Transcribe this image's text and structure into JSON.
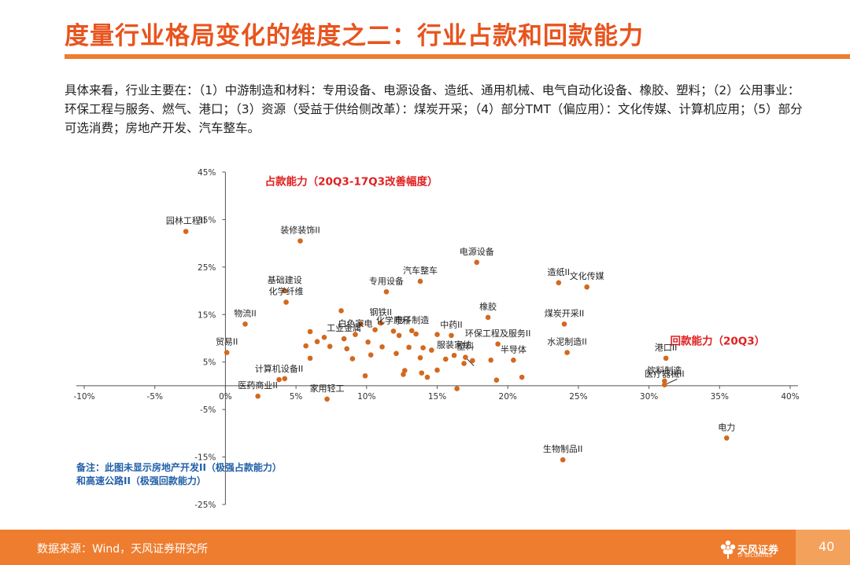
{
  "page": {
    "title": "度量行业格局变化的维度之二：行业占款和回款能力",
    "intro": "具体来看，行业主要在：（1）中游制造和材料：专用设备、电源设备、造纸、通用机械、电气自动化设备、橡胶、塑料；（2）公用事业：环保工程与服务、燃气、港口；（3）资源（受益于供给侧改革）：煤炭开采；（4）部分TMT（偏应用）：文化传媒、计算机应用；（5）部分可选消费；房地产开发、汽车整车。",
    "note_line1": "备注：此图未显示房地产开发II（极强占款能力）",
    "note_line2": "和高速公路II（极强回款能力）",
    "source": "数据来源：Wind，天风证券研究所",
    "page_number": "40",
    "logo_text": "天风证券",
    "logo_sub": "TF SECURITIES"
  },
  "colors": {
    "accent": "#ee7d2f",
    "title": "#e8541e",
    "point": "#d2691e",
    "axis_title": "#e02020",
    "note": "#1f5fa8"
  },
  "chart_data": {
    "type": "scatter",
    "xlabel": "回款能力（20Q3）",
    "ylabel": "占款能力（20Q3-17Q3改善幅度）",
    "xlim": [
      -10,
      40
    ],
    "ylim": [
      -25,
      45
    ],
    "x_ticks": [
      "-10%",
      "-5%",
      "0%",
      "5%",
      "10%",
      "15%",
      "20%",
      "25%",
      "30%",
      "35%",
      "40%"
    ],
    "y_ticks": [
      "45%",
      "35%",
      "25%",
      "15%",
      "5%",
      "-5%",
      "-15%",
      "-25%"
    ],
    "grid": false,
    "labeled_points": [
      {
        "label": "园林工程II",
        "x": -2.8,
        "y": 32.5
      },
      {
        "label": "装修装饰II",
        "x": 5.3,
        "y": 30.5
      },
      {
        "label": "电源设备",
        "x": 17.8,
        "y": 26.0
      },
      {
        "label": "汽车整车",
        "x": 13.8,
        "y": 22.0
      },
      {
        "label": "造纸II",
        "x": 23.6,
        "y": 21.7
      },
      {
        "label": "文化传媒",
        "x": 25.6,
        "y": 20.8
      },
      {
        "label": "基础建设",
        "x": 4.2,
        "y": 20.0
      },
      {
        "label": "专用设备",
        "x": 11.4,
        "y": 19.8
      },
      {
        "label": "化学纤维",
        "x": 4.3,
        "y": 17.6
      },
      {
        "label": "煤炭开采II",
        "x": 24.0,
        "y": 13.0
      },
      {
        "label": "橡胶",
        "x": 18.6,
        "y": 14.4
      },
      {
        "label": "物流II",
        "x": 1.4,
        "y": 13.0
      },
      {
        "label": "钢铁II",
        "x": 11.0,
        "y": 13.2
      },
      {
        "label": "化学原料",
        "x": 11.9,
        "y": 11.5
      },
      {
        "label": "电子制造",
        "x": 13.2,
        "y": 11.6
      },
      {
        "label": "白色家电",
        "x": 9.2,
        "y": 10.8
      },
      {
        "label": "工业金属",
        "x": 8.4,
        "y": 9.9
      },
      {
        "label": "环保工程及服务II",
        "x": 19.3,
        "y": 8.8
      },
      {
        "label": "中药II",
        "x": 16.0,
        "y": 10.6
      },
      {
        "label": "贸易II",
        "x": 0.1,
        "y": 7.0
      },
      {
        "label": "水泥制造II",
        "x": 24.2,
        "y": 7.0
      },
      {
        "label": "港口II",
        "x": 31.2,
        "y": 5.8
      },
      {
        "label": "服装家纺",
        "x": 16.2,
        "y": 6.4
      },
      {
        "label": "塑料",
        "x": 17.0,
        "y": 6.0
      },
      {
        "label": "半导体",
        "x": 20.4,
        "y": 5.4
      },
      {
        "label": "饮料制造",
        "x": 31.1,
        "y": 1.0
      },
      {
        "label": "医疗器械II",
        "x": 31.1,
        "y": 0.2
      },
      {
        "label": "计算机设备II",
        "x": 3.8,
        "y": 1.3
      },
      {
        "label": "医药商业II",
        "x": 2.3,
        "y": -2.2
      },
      {
        "label": "家用轻工",
        "x": 7.2,
        "y": -2.8
      },
      {
        "label": "电力",
        "x": 35.5,
        "y": -11.0
      },
      {
        "label": "生物制品II",
        "x": 23.9,
        "y": -15.6
      }
    ],
    "unlabeled_points": [
      {
        "x": 6.0,
        "y": 11.4
      },
      {
        "x": 7.0,
        "y": 10.2
      },
      {
        "x": 8.2,
        "y": 15.8
      },
      {
        "x": 9.6,
        "y": 13.0
      },
      {
        "x": 10.6,
        "y": 11.8
      },
      {
        "x": 12.3,
        "y": 10.6
      },
      {
        "x": 13.5,
        "y": 10.9
      },
      {
        "x": 15.0,
        "y": 10.8
      },
      {
        "x": 5.7,
        "y": 8.4
      },
      {
        "x": 6.5,
        "y": 9.3
      },
      {
        "x": 8.6,
        "y": 7.8
      },
      {
        "x": 10.1,
        "y": 9.2
      },
      {
        "x": 11.1,
        "y": 8.2
      },
      {
        "x": 13.0,
        "y": 8.1
      },
      {
        "x": 14.0,
        "y": 8.0
      },
      {
        "x": 6.0,
        "y": 5.8
      },
      {
        "x": 7.4,
        "y": 8.3
      },
      {
        "x": 9.0,
        "y": 5.7
      },
      {
        "x": 10.3,
        "y": 6.5
      },
      {
        "x": 12.1,
        "y": 6.8
      },
      {
        "x": 13.8,
        "y": 5.9
      },
      {
        "x": 14.6,
        "y": 7.5
      },
      {
        "x": 15.6,
        "y": 5.6
      },
      {
        "x": 9.9,
        "y": 2.1
      },
      {
        "x": 12.7,
        "y": 3.2
      },
      {
        "x": 12.6,
        "y": 2.4
      },
      {
        "x": 13.9,
        "y": 2.7
      },
      {
        "x": 14.3,
        "y": 1.8
      },
      {
        "x": 15.0,
        "y": 3.3
      },
      {
        "x": 16.9,
        "y": 4.7
      },
      {
        "x": 17.5,
        "y": 5.3
      },
      {
        "x": 18.8,
        "y": 5.4
      },
      {
        "x": 19.2,
        "y": 1.2
      },
      {
        "x": 21.0,
        "y": 1.8
      },
      {
        "x": 16.4,
        "y": -0.6
      },
      {
        "x": 4.2,
        "y": 1.5
      }
    ]
  }
}
